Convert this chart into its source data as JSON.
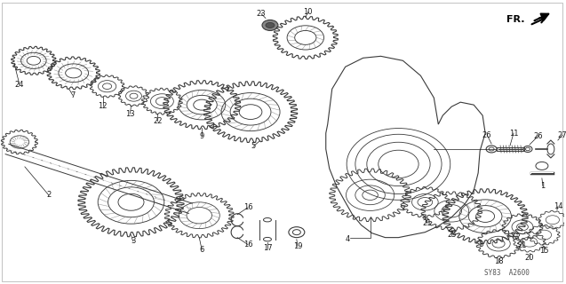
{
  "background_color": "#ffffff",
  "fig_width": 6.37,
  "fig_height": 3.2,
  "dpi": 100,
  "watermark": "SY83  A2600",
  "fr_label": "FR.",
  "line_color": "#3a3a3a",
  "text_color": "#1a1a1a",
  "label_fontsize": 6.0
}
